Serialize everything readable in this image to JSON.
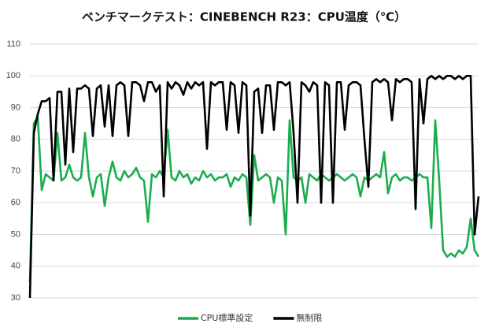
{
  "chart_data": {
    "type": "line",
    "title": "ベンチマークテスト：CINEBENCH R23：CPU温度（℃）",
    "ylim": [
      30,
      110
    ],
    "yticks": [
      30,
      40,
      50,
      60,
      70,
      80,
      90,
      100,
      110
    ],
    "grid": true,
    "legend": "bottom",
    "series": [
      {
        "name": "CPU標準設定",
        "color": "#1aad4e",
        "values": [
          35,
          85,
          87,
          64,
          69,
          68,
          67,
          82,
          67,
          68,
          72,
          68,
          67,
          68,
          82,
          68,
          62,
          68,
          69,
          59,
          68,
          73,
          68,
          67,
          70,
          68,
          69,
          71,
          68,
          67,
          54,
          69,
          68,
          70,
          68,
          83,
          68,
          67,
          70,
          68,
          69,
          66,
          68,
          67,
          70,
          68,
          69,
          67,
          68,
          68,
          69,
          65,
          68,
          67,
          69,
          68,
          53,
          75,
          67,
          68,
          69,
          68,
          60,
          68,
          67,
          50,
          86,
          68,
          67,
          68,
          60,
          69,
          68,
          67,
          69,
          68,
          67,
          68,
          69,
          68,
          67,
          68,
          69,
          68,
          62,
          68,
          67,
          68,
          69,
          68,
          76,
          63,
          68,
          69,
          67,
          68,
          68,
          67,
          68,
          69,
          68,
          68,
          52,
          86,
          67,
          45,
          43,
          44,
          43,
          45,
          44,
          46,
          55,
          45,
          43
        ]
      },
      {
        "name": "無制限",
        "color": "#000000",
        "values": [
          30,
          82,
          88,
          92,
          92,
          93,
          67,
          95,
          95,
          72,
          96,
          76,
          96,
          96,
          97,
          96,
          81,
          96,
          97,
          84,
          97,
          81,
          97,
          98,
          97,
          81,
          98,
          98,
          97,
          92,
          98,
          98,
          95,
          97,
          62,
          98,
          96,
          98,
          97,
          94,
          98,
          96,
          98,
          97,
          98,
          77,
          98,
          97,
          98,
          98,
          83,
          98,
          97,
          82,
          98,
          97,
          56,
          95,
          96,
          82,
          97,
          97,
          83,
          98,
          98,
          97,
          98,
          82,
          60,
          98,
          97,
          95,
          98,
          97,
          60,
          98,
          97,
          60,
          98,
          98,
          83,
          97,
          98,
          98,
          97,
          80,
          65,
          98,
          99,
          98,
          99,
          98,
          86,
          99,
          98,
          99,
          99,
          98,
          58,
          99,
          85,
          99,
          100,
          99,
          100,
          99,
          100,
          100,
          99,
          100,
          99,
          100,
          100,
          50,
          62
        ]
      }
    ]
  }
}
